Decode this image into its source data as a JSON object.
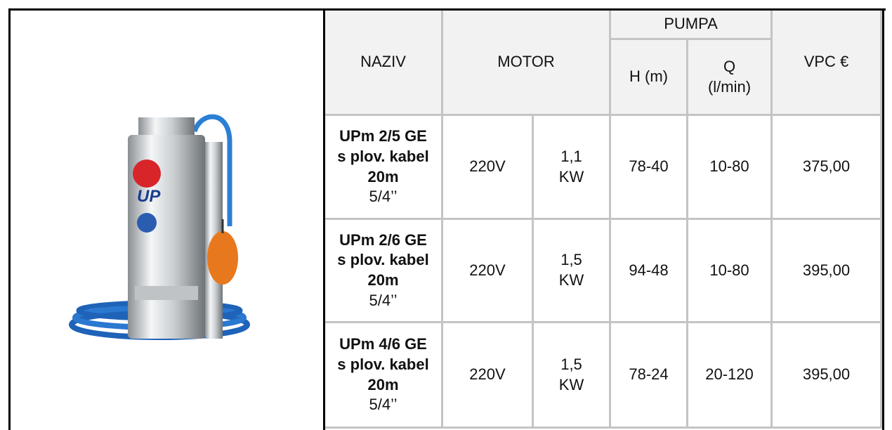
{
  "header": {
    "naziv": "NAZIV",
    "motor": "MOTOR",
    "pumpa": "PUMPA",
    "h": "H (m)",
    "q": "Q (l/min)",
    "vpc": "VPC €"
  },
  "rows": [
    {
      "name": "UPm 2/5 GE s plov. kabel 20m",
      "size": "5/4’’",
      "voltage": "220V",
      "power": "1,1 KW",
      "h": "78-40",
      "q": "10-80",
      "price": "375,00"
    },
    {
      "name": "UPm 2/6 GE s plov. kabel 20m",
      "size": "5/4’’",
      "voltage": "220V",
      "power": "1,5 KW",
      "h": "94-48",
      "q": "10-80",
      "price": "395,00"
    },
    {
      "name": "UPm 4/6 GE s plov. kabel 20m",
      "size": "5/4’’",
      "voltage": "220V",
      "power": "1,5 KW",
      "h": "78-24",
      "q": "20-120",
      "price": "395,00"
    }
  ]
}
